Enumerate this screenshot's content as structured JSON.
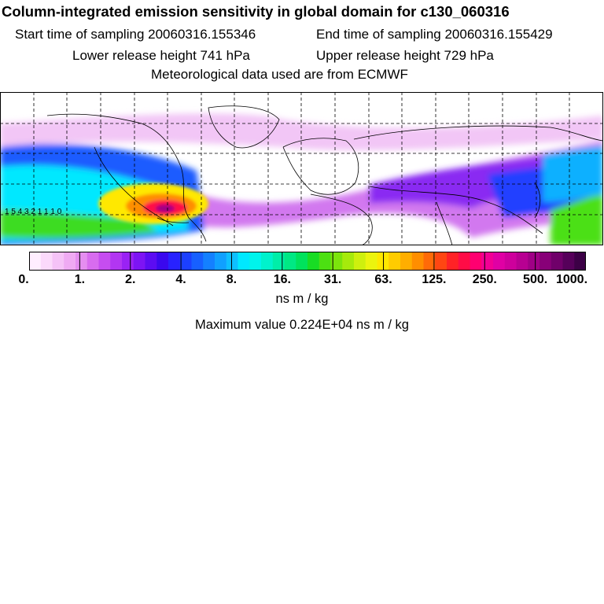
{
  "header": {
    "title": "Column-integrated emission sensitivity in global domain for c130_060316",
    "start_time": "Start time of sampling 20060316.155346",
    "end_time": "End time of sampling 20060316.155429",
    "lower_release": "Lower release height  741 hPa",
    "upper_release": "Upper release height  729 hPa",
    "met_data": "Meteorological data used are from ECMWF"
  },
  "map": {
    "contour_labels": "1 5 4 3 2 1 1 1 0"
  },
  "colorbar": {
    "tick_labels": [
      "0.",
      "1.",
      "2.",
      "4.",
      "8.",
      "16.",
      "31.",
      "63.",
      "125.",
      "250.",
      "500.",
      "1000."
    ],
    "colors": [
      "#ffeeff",
      "#fbd9fb",
      "#f5c2f7",
      "#efaaf3",
      "#e58ef0",
      "#d86cef",
      "#c64df0",
      "#b236f2",
      "#9a22f4",
      "#7d14f4",
      "#5c0cf2",
      "#3a08ee",
      "#2822ff",
      "#1c40ff",
      "#1760ff",
      "#1480ff",
      "#10a0ff",
      "#0ec0ff",
      "#00e8ff",
      "#00f4ec",
      "#00f2cc",
      "#00eea8",
      "#00e884",
      "#00e25c",
      "#18dc24",
      "#4ce012",
      "#7ce40c",
      "#a6ea0c",
      "#cef00e",
      "#ecf40e",
      "#ffe800",
      "#ffcc00",
      "#ffae00",
      "#ff8e00",
      "#ff6a08",
      "#ff4612",
      "#ff2226",
      "#ff0c46",
      "#ff0070",
      "#f20094",
      "#e000a4",
      "#ce009c",
      "#b80092",
      "#a00086",
      "#880078",
      "#70006a",
      "#56005a",
      "#3c0046"
    ]
  },
  "footer": {
    "units": "ns m / kg",
    "max_value": "Maximum value  0.224E+04 ns m / kg"
  }
}
